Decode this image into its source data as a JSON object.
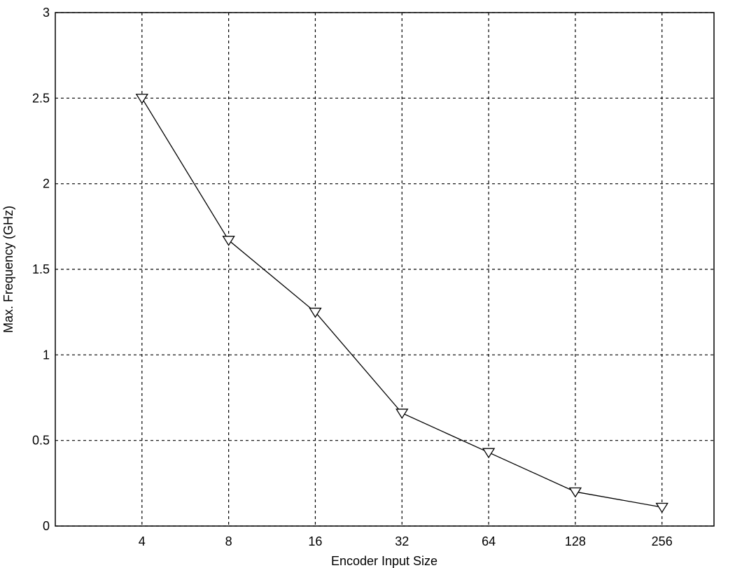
{
  "chart_data": {
    "type": "line",
    "x_label": "Encoder Input Size",
    "y_label": "Max. Frequency (GHz)",
    "categories": [
      "4",
      "8",
      "16",
      "32",
      "64",
      "128",
      "256"
    ],
    "values": [
      2.5,
      1.67,
      1.25,
      0.66,
      0.43,
      0.2,
      0.11
    ],
    "color": "#000000",
    "marker": "triangle-down",
    "ylim": [
      0,
      3
    ],
    "yticks": [
      0,
      0.5,
      1,
      1.5,
      2,
      2.5,
      3
    ],
    "grid": true
  }
}
